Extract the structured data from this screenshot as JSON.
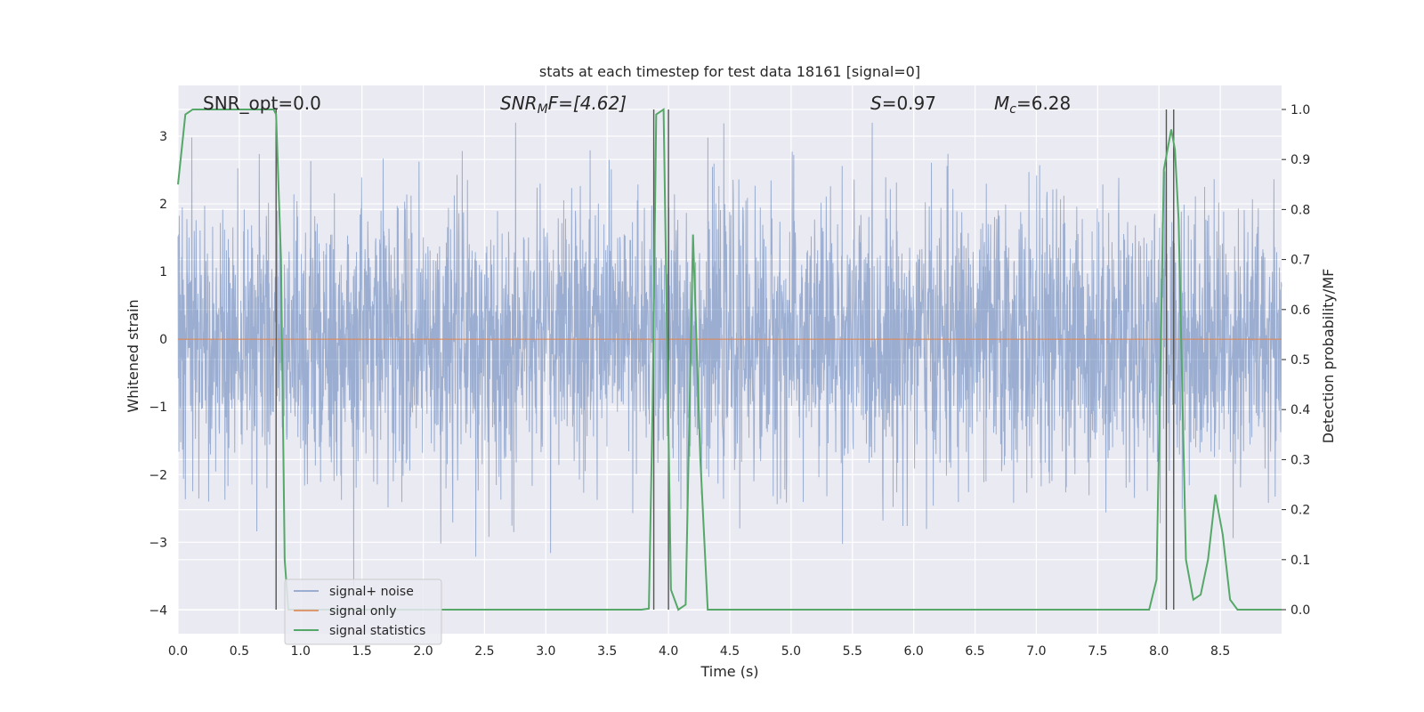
{
  "chart_data": {
    "type": "line",
    "title": "stats at each timestep for test data 18161 [signal=0]",
    "xlabel": "Time (s)",
    "ylabel_left": "Whitened strain",
    "ylabel_right": "Detection probability/MF",
    "xlim": [
      0.0,
      9.0
    ],
    "ylim_left": [
      -4.35,
      3.75
    ],
    "ylim_right": [
      -0.048,
      1.048
    ],
    "x_ticks": [
      "0.0",
      "0.5",
      "1.0",
      "1.5",
      "2.0",
      "2.5",
      "3.0",
      "3.5",
      "4.0",
      "4.5",
      "5.0",
      "5.5",
      "6.0",
      "6.5",
      "7.0",
      "7.5",
      "8.0",
      "8.5"
    ],
    "y_left_ticks": [
      "3",
      "2",
      "1",
      "0",
      "−1",
      "−2",
      "−3",
      "−4"
    ],
    "y_right_ticks": [
      "1.0",
      "0.9",
      "0.8",
      "0.7",
      "0.6",
      "0.5",
      "0.4",
      "0.3",
      "0.2",
      "0.1",
      "0.0"
    ],
    "grid": true,
    "legend_position": "lower-left",
    "annotations": {
      "snr_opt": "SNR_opt=0.0",
      "snr_mf_prefix": "SNR",
      "snr_mf_sub": "M",
      "snr_mf_suffix": "F=[4.62]",
      "s_prefix": "S",
      "s_value": "=0.97",
      "mc_prefix": "M",
      "mc_sub": "c",
      "mc_value": "=6.28"
    },
    "series": [
      {
        "name": "signal+ noise",
        "color": "#4c72b0",
        "axis": "left",
        "description_values": "gaussian-like whitened noise, approx within ±2.6 with spikes to about ±4"
      },
      {
        "name": "signal only",
        "color": "#dd8452",
        "axis": "left",
        "x": [
          0.0,
          9.0
        ],
        "y": [
          0.0,
          0.0
        ]
      },
      {
        "name": "signal statistics",
        "color": "#55a868",
        "axis": "right",
        "x": [
          0.0,
          0.06,
          0.12,
          0.18,
          0.24,
          0.3,
          0.36,
          0.42,
          0.48,
          0.54,
          0.6,
          0.66,
          0.72,
          0.78,
          0.8,
          0.84,
          0.87,
          0.9,
          0.96,
          1.02,
          1.5,
          2.0,
          2.5,
          3.0,
          3.5,
          3.78,
          3.84,
          3.87,
          3.9,
          3.96,
          4.02,
          4.08,
          4.14,
          4.2,
          4.26,
          4.32,
          4.38,
          4.44,
          5.0,
          6.0,
          7.0,
          7.8,
          7.92,
          7.98,
          8.04,
          8.1,
          8.13,
          8.16,
          8.22,
          8.28,
          8.34,
          8.4,
          8.46,
          8.52,
          8.58,
          8.64,
          8.7,
          8.76,
          8.82,
          9.0
        ],
        "y": [
          0.85,
          0.99,
          1.0,
          1.0,
          1.0,
          1.0,
          1.0,
          1.0,
          1.0,
          1.0,
          1.0,
          1.0,
          1.0,
          1.0,
          0.99,
          0.7,
          0.1,
          0.0,
          0.0,
          0.0,
          0.0,
          0.0,
          0.0,
          0.0,
          0.0,
          0.0,
          0.002,
          0.4,
          0.99,
          1.0,
          0.04,
          0.0,
          0.01,
          0.75,
          0.3,
          0.0,
          0.0,
          0.0,
          0.0,
          0.0,
          0.0,
          0.0,
          0.0,
          0.06,
          0.88,
          0.96,
          0.92,
          0.78,
          0.1,
          0.02,
          0.03,
          0.1,
          0.23,
          0.15,
          0.02,
          0.0,
          0.0,
          0.0,
          0.0,
          0.0
        ]
      }
    ],
    "vertical_lines_x": [
      0.8,
      3.88,
      4.0,
      8.06,
      8.12
    ]
  }
}
